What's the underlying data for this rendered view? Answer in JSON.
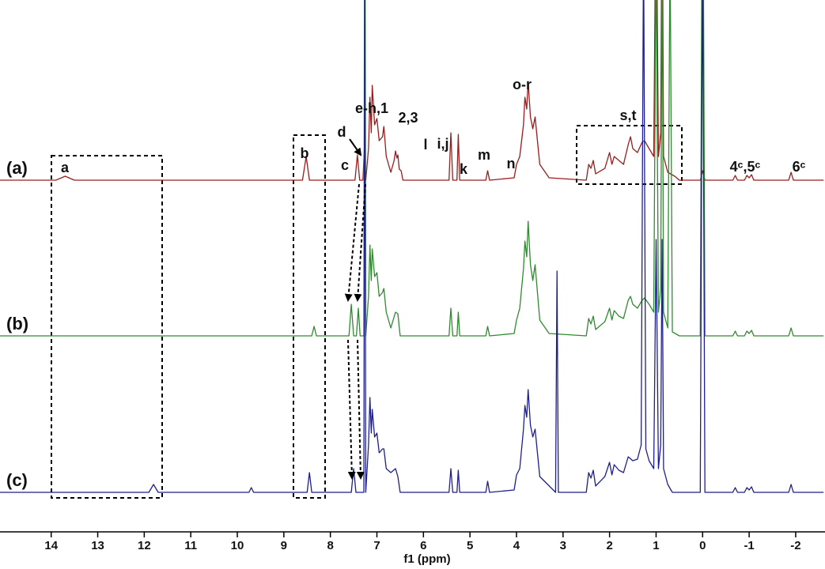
{
  "chart_data": {
    "type": "line",
    "x_label": "f1 (ppm)",
    "xlim": [
      15.1,
      -2.63
    ],
    "xticks": [
      14,
      13,
      12,
      11,
      10,
      9,
      8,
      7,
      6,
      5,
      4,
      3,
      2,
      1,
      0,
      -1,
      -2
    ],
    "series": [
      {
        "name": "(a)",
        "color": "#9b1c1c",
        "x": [
          15.1,
          13.9,
          13.7,
          13.5,
          8.6,
          8.52,
          8.45,
          7.47,
          7.42,
          7.37,
          7.3,
          7.27,
          7.24,
          7.18,
          7.15,
          7.12,
          7.1,
          7.05,
          7.0,
          6.95,
          6.88,
          6.85,
          6.8,
          6.7,
          6.63,
          6.6,
          6.57,
          6.55,
          6.52,
          6.48,
          6.44,
          5.45,
          5.41,
          5.37,
          5.28,
          5.25,
          5.22,
          4.66,
          4.62,
          4.58,
          4.05,
          4.0,
          3.93,
          3.85,
          3.82,
          3.78,
          3.75,
          3.7,
          3.65,
          3.6,
          3.5,
          3.3,
          2.5,
          2.45,
          2.4,
          2.35,
          2.3,
          2.1,
          2.0,
          1.95,
          1.9,
          1.8,
          1.7,
          1.6,
          1.55,
          1.5,
          1.4,
          1.3,
          1.25,
          1.15,
          1.05,
          1.0,
          0.95,
          0.9,
          0.87,
          0.84,
          0.75,
          0.6,
          0.5,
          0.05,
          0.0,
          -0.05,
          -0.65,
          -0.7,
          -0.75,
          -0.9,
          -0.95,
          -1.0,
          -1.05,
          -1.1,
          -1.85,
          -1.9,
          -1.95,
          -2.6
        ],
        "values": [
          0,
          0,
          5,
          0,
          0,
          30,
          0,
          0,
          32,
          0,
          0,
          38,
          0,
          40,
          105,
          60,
          120,
          70,
          78,
          50,
          55,
          68,
          30,
          10,
          25,
          37,
          28,
          32,
          14,
          12,
          0,
          0,
          60,
          0,
          0,
          58,
          0,
          0,
          12,
          0,
          3,
          20,
          30,
          70,
          105,
          90,
          125,
          80,
          65,
          80,
          20,
          3,
          0,
          20,
          15,
          25,
          8,
          15,
          35,
          20,
          30,
          25,
          20,
          45,
          55,
          40,
          35,
          48,
          50,
          40,
          30,
          400,
          30,
          60,
          400,
          30,
          10,
          5,
          0,
          0,
          12,
          0,
          0,
          6,
          0,
          0,
          6,
          3,
          7,
          0,
          0,
          10,
          0,
          0
        ]
      },
      {
        "name": "(b)",
        "color": "#2e8b2e",
        "x": [
          15.1,
          8.4,
          8.35,
          8.3,
          7.6,
          7.55,
          7.5,
          7.44,
          7.4,
          7.36,
          7.28,
          7.26,
          7.24,
          7.18,
          7.15,
          7.12,
          7.1,
          7.05,
          7.0,
          6.95,
          6.88,
          6.85,
          6.8,
          6.7,
          6.6,
          6.55,
          6.5,
          5.45,
          5.41,
          5.37,
          5.28,
          5.25,
          5.22,
          4.66,
          4.62,
          4.58,
          4.05,
          4.0,
          3.93,
          3.85,
          3.82,
          3.78,
          3.75,
          3.7,
          3.65,
          3.6,
          3.5,
          3.3,
          2.5,
          2.45,
          2.4,
          2.35,
          2.3,
          2.1,
          2.0,
          1.95,
          1.9,
          1.8,
          1.7,
          1.6,
          1.55,
          1.5,
          1.4,
          1.3,
          1.25,
          1.15,
          1.05,
          1.0,
          0.95,
          0.9,
          0.87,
          0.84,
          0.75,
          0.7,
          0.65,
          0.5,
          0.05,
          0.0,
          -0.05,
          -0.65,
          -0.7,
          -0.75,
          -0.9,
          -0.95,
          -1.0,
          -1.05,
          -1.1,
          -1.85,
          -1.9,
          -1.95,
          -2.6
        ],
        "values": [
          0,
          0,
          12,
          0,
          0,
          40,
          0,
          0,
          35,
          0,
          0,
          700,
          0,
          50,
          115,
          70,
          110,
          75,
          80,
          50,
          55,
          60,
          30,
          10,
          30,
          28,
          0,
          0,
          35,
          0,
          0,
          30,
          0,
          0,
          12,
          0,
          3,
          20,
          35,
          85,
          120,
          100,
          145,
          90,
          70,
          90,
          20,
          3,
          0,
          22,
          15,
          25,
          8,
          18,
          35,
          20,
          32,
          25,
          22,
          45,
          50,
          40,
          35,
          45,
          48,
          40,
          30,
          500,
          30,
          60,
          500,
          30,
          10,
          500,
          5,
          0,
          0,
          700,
          0,
          0,
          6,
          0,
          0,
          6,
          3,
          7,
          0,
          0,
          10,
          0,
          0
        ]
      },
      {
        "name": "(c)",
        "color": "#1f1f8c",
        "x": [
          15.1,
          11.9,
          11.8,
          11.7,
          9.75,
          9.7,
          9.65,
          8.5,
          8.45,
          8.4,
          7.55,
          7.5,
          7.45,
          7.28,
          7.26,
          7.24,
          7.18,
          7.15,
          7.12,
          7.1,
          7.05,
          7.0,
          6.95,
          6.88,
          6.85,
          6.8,
          6.7,
          6.6,
          6.55,
          6.5,
          5.45,
          5.41,
          5.37,
          5.28,
          5.25,
          5.22,
          4.66,
          4.62,
          4.58,
          4.05,
          4.0,
          3.93,
          3.85,
          3.82,
          3.78,
          3.75,
          3.7,
          3.65,
          3.6,
          3.5,
          3.16,
          3.13,
          3.1,
          2.5,
          2.45,
          2.4,
          2.35,
          2.3,
          2.1,
          2.0,
          1.95,
          1.9,
          1.8,
          1.7,
          1.6,
          1.5,
          1.4,
          1.32,
          1.27,
          1.22,
          1.15,
          1.05,
          1.0,
          0.95,
          0.9,
          0.87,
          0.84,
          0.75,
          0.7,
          0.65,
          0.5,
          0.05,
          0.0,
          -0.05,
          -0.65,
          -0.7,
          -0.75,
          -0.9,
          -0.95,
          -1.0,
          -1.05,
          -1.1,
          -1.85,
          -1.9,
          -1.95,
          -2.6
        ],
        "values": [
          0,
          0,
          10,
          0,
          0,
          6,
          0,
          0,
          25,
          0,
          0,
          30,
          0,
          0,
          700,
          0,
          60,
          120,
          75,
          105,
          70,
          75,
          50,
          55,
          55,
          30,
          25,
          30,
          20,
          0,
          0,
          30,
          0,
          0,
          28,
          0,
          0,
          14,
          0,
          3,
          22,
          30,
          80,
          110,
          95,
          130,
          85,
          70,
          80,
          20,
          0,
          280,
          0,
          0,
          25,
          18,
          28,
          8,
          20,
          38,
          22,
          35,
          28,
          25,
          45,
          40,
          42,
          60,
          700,
          55,
          40,
          30,
          320,
          30,
          60,
          320,
          30,
          10,
          5,
          0,
          0,
          0,
          700,
          0,
          0,
          6,
          0,
          0,
          6,
          3,
          7,
          0,
          0,
          10,
          0,
          0
        ]
      }
    ],
    "annotations": [
      "a",
      "b",
      "c",
      "d",
      "e-h,1",
      "2,3",
      "i,j",
      "k",
      "l",
      "m",
      "n",
      "o-r",
      "s,t",
      "4ᶜ,5ᶜ",
      "6ᶜ"
    ]
  }
}
